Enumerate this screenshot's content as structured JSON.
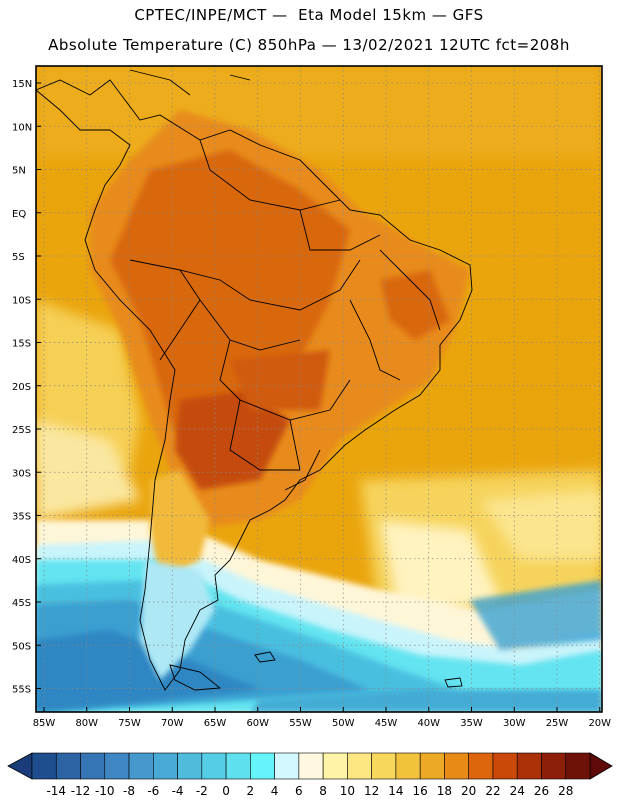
{
  "header": {
    "line1": "CPTEC/INPE/MCT —  Eta Model 15km — GFS",
    "line2": "Absolute Temperature (C) 850hPa — 13/02/2021 12UTC fct=208h"
  },
  "map": {
    "lat_labels": [
      "15N",
      "10N",
      "5N",
      "EQ",
      "5S",
      "10S",
      "15S",
      "20S",
      "25S",
      "30S",
      "35S",
      "40S",
      "45S",
      "50S",
      "55S"
    ],
    "lon_labels": [
      "85W",
      "80W",
      "75W",
      "70W",
      "65W",
      "60W",
      "55W",
      "50W",
      "45W",
      "40W",
      "35W",
      "30W",
      "25W",
      "20W"
    ],
    "colors": {
      "ocean_warm": "#e9a10b",
      "ocean_cool": "#f4c842",
      "land_hot": "#d96a12",
      "land_very_hot": "#b84009",
      "land_hotter": "#e88b1c",
      "cold_1": "#3e9fd2",
      "cold_2": "#1c7ec0",
      "cyan": "#5ee6f2",
      "pale_yellow": "#fff2b0",
      "cream": "#fff8e0",
      "border": "#000000"
    }
  },
  "colorbar": {
    "labels": [
      "-14",
      "-12",
      "-10",
      "-8",
      "-6",
      "-4",
      "-2",
      "0",
      "2",
      "4",
      "6",
      "8",
      "10",
      "12",
      "14",
      "16",
      "18",
      "20",
      "22",
      "24",
      "26",
      "28"
    ],
    "colors": [
      "#1f4e8f",
      "#2b63a3",
      "#3575b4",
      "#3f87c3",
      "#4699cd",
      "#4aaad6",
      "#4fbcde",
      "#55cde6",
      "#5ee0ef",
      "#66f4fb",
      "#d4f8ff",
      "#fff8e0",
      "#fff3a8",
      "#fce782",
      "#f7d85d",
      "#f2c23d",
      "#eca926",
      "#e78b16",
      "#dd650e",
      "#c9480a",
      "#aa3008",
      "#8c1e0a",
      "#6e1108"
    ],
    "left_arrow_color": "#1a3c7a",
    "right_arrow_color": "#5e0a0a"
  }
}
